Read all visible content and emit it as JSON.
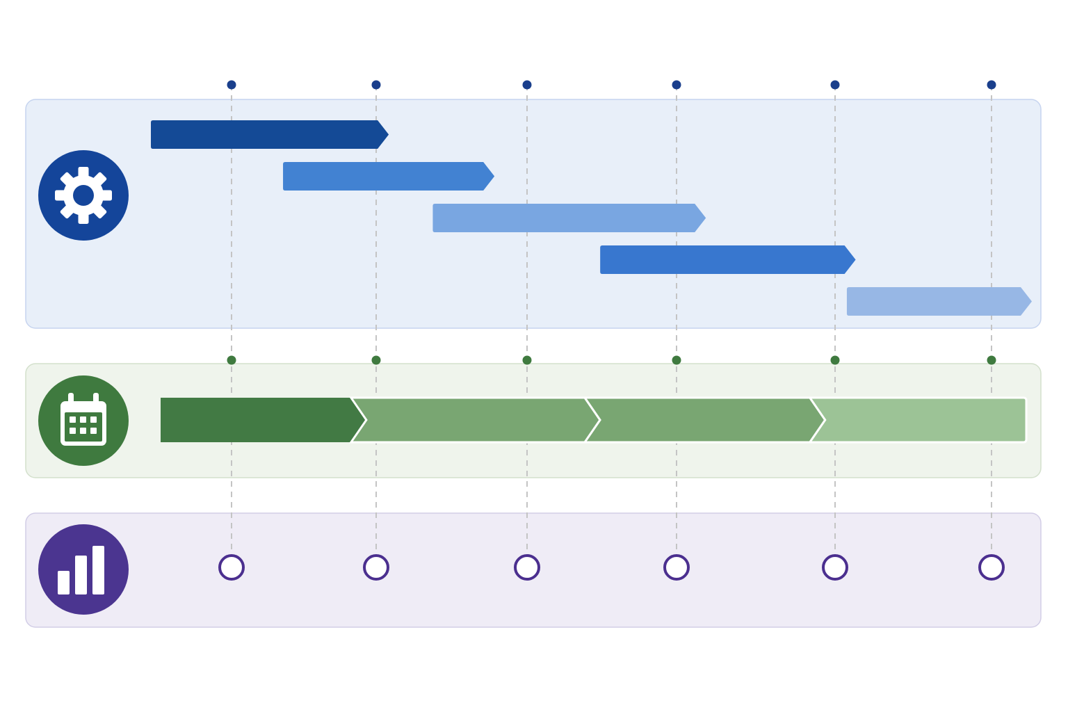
{
  "colors": {
    "page_background": "#ffffff",
    "process_band_fill": "#e8eff9",
    "process_band_border": "#c6d4ef",
    "schedule_band_fill": "#eff4ec",
    "schedule_band_border": "#d3e0cc",
    "metrics_band_fill": "#efecf6",
    "metrics_band_border": "#d2cde6",
    "gridline": "#c4c4c4",
    "top_dot": "#1a3f8c",
    "schedule_dot": "#3f7a3f",
    "milestone_ring": "#4b2f8f",
    "milestone_fill": "#ffffff"
  },
  "diagram": {
    "type": "timeline-gantt",
    "milestone_count": 6,
    "bands": [
      {
        "id": "process",
        "icon": "gear-icon",
        "icon_color": "#14459a",
        "task_bars": [
          {
            "start": 0.0,
            "end": 0.27,
            "color": "#144a96"
          },
          {
            "start": 0.15,
            "end": 0.39,
            "color": "#4282d2"
          },
          {
            "start": 0.32,
            "end": 0.63,
            "color": "#79a6e1"
          },
          {
            "start": 0.51,
            "end": 0.8,
            "color": "#3877cf"
          },
          {
            "start": 0.79,
            "end": 1.0,
            "color": "#97b7e5"
          }
        ]
      },
      {
        "id": "schedule",
        "icon": "calendar-icon",
        "icon_color": "#3f7a3f",
        "phases": [
          {
            "start": 0.0,
            "end": 0.22,
            "color": "#427a44"
          },
          {
            "start": 0.22,
            "end": 0.49,
            "color": "#79a672"
          },
          {
            "start": 0.49,
            "end": 0.75,
            "color": "#79a672"
          },
          {
            "start": 0.75,
            "end": 1.0,
            "color": "#9cc396"
          }
        ]
      },
      {
        "id": "metrics",
        "icon": "bar-chart-icon",
        "icon_color": "#4b3590"
      }
    ]
  }
}
